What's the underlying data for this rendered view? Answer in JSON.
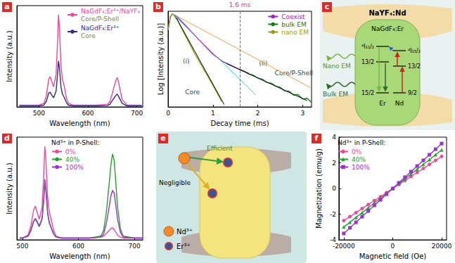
{
  "chart_data": [
    {
      "panel": "a",
      "type": "line",
      "x_label": "Wavelength (nm)",
      "y_label": "Intensity (a.u.)",
      "xlim": [
        455,
        712
      ],
      "xticks": [
        500,
        600,
        700
      ],
      "ylim": [
        0,
        1.1
      ],
      "tick_labels": "x",
      "grid": false,
      "legend": "upper right",
      "x": [
        460,
        480,
        500,
        510,
        515,
        520,
        523,
        526,
        530,
        535,
        538,
        540,
        542,
        545,
        548,
        552,
        556,
        560,
        570,
        580,
        600,
        620,
        640,
        645,
        650,
        655,
        658,
        660,
        663,
        666,
        670,
        680,
        700,
        710
      ],
      "series": [
        {
          "name": "NaGdF₄:Er³⁺/NaYF₄",
          "subtitle": "Core/P-Shell",
          "color": "#f0479a",
          "values": [
            0.02,
            0.02,
            0.02,
            0.04,
            0.12,
            0.3,
            0.33,
            0.28,
            0.22,
            0.35,
            0.7,
            1.0,
            0.85,
            0.45,
            0.3,
            0.22,
            0.1,
            0.04,
            0.02,
            0.02,
            0.02,
            0.02,
            0.03,
            0.06,
            0.15,
            0.25,
            0.3,
            0.32,
            0.26,
            0.18,
            0.08,
            0.02,
            0.02,
            0.02
          ]
        },
        {
          "name": "NaGdF₄:Er³⁺",
          "subtitle": "Core",
          "color": "#2b2b8a",
          "values": [
            0.01,
            0.01,
            0.01,
            0.02,
            0.06,
            0.15,
            0.16,
            0.13,
            0.1,
            0.17,
            0.35,
            0.5,
            0.42,
            0.22,
            0.14,
            0.1,
            0.05,
            0.02,
            0.01,
            0.01,
            0.01,
            0.01,
            0.015,
            0.03,
            0.07,
            0.11,
            0.13,
            0.14,
            0.11,
            0.08,
            0.04,
            0.01,
            0.01,
            0.01
          ]
        }
      ]
    },
    {
      "panel": "b",
      "type": "line",
      "x_label": "Decay time (ms)",
      "y_label": "Log [Intensity (a.u.)]",
      "xlim": [
        0,
        3.2
      ],
      "xticks": [
        0,
        1,
        2,
        3
      ],
      "ylim": [
        0.001,
        1.2
      ],
      "log": "y",
      "tick_labels": "x",
      "grid": false,
      "legend": "upper right",
      "series": [
        {
          "name": "Coexist",
          "color": "#a020c0",
          "x": [
            0,
            0.05,
            0.1,
            0.2,
            0.4,
            0.6,
            0.8,
            1.0,
            1.2,
            1.4,
            1.6,
            1.8
          ],
          "values": [
            0.3,
            0.8,
            1,
            0.8,
            0.4,
            0.2,
            0.1,
            0.05,
            0.03,
            0.022,
            0.016,
            0.012
          ]
        },
        {
          "name": "bulk EM",
          "color": "#1a7a1a",
          "x": [
            1.6,
            1.7,
            1.8,
            1.9,
            2.0,
            2.1,
            2.2,
            2.3,
            2.4,
            2.5,
            2.6,
            2.7,
            2.8,
            2.9,
            3.0,
            3.1,
            3.2
          ],
          "values": [
            0.016,
            0.014,
            0.0115,
            0.0105,
            0.0085,
            0.0078,
            0.0062,
            0.0058,
            0.0047,
            0.0043,
            0.0033,
            0.0032,
            0.0024,
            0.0025,
            0.0018,
            0.0019,
            0.0014
          ]
        },
        {
          "name": "nano EM",
          "color": "#9a9a10",
          "x": [
            0,
            0.05,
            0.1,
            0.2,
            0.4,
            0.6,
            0.8,
            1.0,
            1.2
          ],
          "values": [
            0.3,
            0.8,
            1,
            0.65,
            0.18,
            0.05,
            0.016,
            0.005,
            0.0015
          ]
        }
      ],
      "fits": [
        {
          "color": "#000000",
          "line_style": "solid",
          "x": [
            0.15,
            1.25
          ],
          "values": [
            0.9,
            0.0012
          ]
        },
        {
          "color": "#40c8e0",
          "line_style": "solid",
          "x": [
            0.1,
            1.95
          ],
          "values": [
            1.0,
            0.0025
          ]
        },
        {
          "color": "#f5a040",
          "line_style": "solid",
          "x": [
            0.1,
            3.2
          ],
          "values": [
            1.0,
            0.004
          ]
        },
        {
          "color": "#000000",
          "line_style": "solid",
          "x": [
            1.3,
            3.1
          ],
          "values": [
            0.025,
            0.0016
          ]
        }
      ],
      "vline": {
        "value": 1.6,
        "label": "1.6 ms",
        "color": "#e0407a"
      },
      "annotations": [
        {
          "text": "(i)",
          "x": 0.25,
          "y": 0.03
        },
        {
          "text": "(ii)",
          "x": 1.95,
          "y": 0.025
        },
        {
          "text": "Core",
          "x": 0.3,
          "y": 0.003
        },
        {
          "text": "Core/P-Shell",
          "x": 2.3,
          "y": 0.012
        }
      ]
    },
    {
      "panel": "d",
      "type": "line",
      "x_label": "Wavelength (nm)",
      "y_label": "Intensity (a.u.)",
      "xlim": [
        490,
        715
      ],
      "xticks": [
        500,
        600,
        700
      ],
      "ylim": [
        0,
        1.1
      ],
      "tick_labels": "x",
      "grid": false,
      "legend": "upper center",
      "legend_title": "Nd³⁺ in P-Shell:",
      "x": [
        495,
        500,
        510,
        515,
        520,
        523,
        526,
        530,
        535,
        538,
        540,
        542,
        545,
        548,
        552,
        556,
        560,
        570,
        580,
        600,
        620,
        640,
        645,
        650,
        655,
        658,
        661,
        664,
        667,
        670,
        675,
        680,
        700,
        715
      ],
      "series": [
        {
          "name": "0%",
          "color": "#f0479a",
          "values": [
            0.02,
            0.02,
            0.05,
            0.15,
            0.32,
            0.36,
            0.3,
            0.22,
            0.35,
            0.7,
            1.0,
            0.85,
            0.45,
            0.3,
            0.2,
            0.1,
            0.04,
            0.02,
            0.02,
            0.02,
            0.02,
            0.03,
            0.04,
            0.07,
            0.1,
            0.12,
            0.13,
            0.11,
            0.08,
            0.05,
            0.03,
            0.02,
            0.02,
            0.02
          ]
        },
        {
          "name": "40%",
          "color": "#22a32a",
          "values": [
            0.02,
            0.02,
            0.04,
            0.1,
            0.2,
            0.22,
            0.19,
            0.14,
            0.22,
            0.42,
            0.62,
            0.52,
            0.28,
            0.18,
            0.12,
            0.06,
            0.03,
            0.02,
            0.02,
            0.02,
            0.02,
            0.04,
            0.1,
            0.3,
            0.6,
            0.8,
            0.92,
            0.85,
            0.6,
            0.35,
            0.12,
            0.04,
            0.02,
            0.02
          ]
        },
        {
          "name": "100%",
          "color": "#9b30d0",
          "values": [
            0.02,
            0.02,
            0.04,
            0.1,
            0.2,
            0.23,
            0.2,
            0.15,
            0.23,
            0.44,
            0.65,
            0.54,
            0.29,
            0.19,
            0.12,
            0.06,
            0.03,
            0.02,
            0.02,
            0.02,
            0.02,
            0.03,
            0.06,
            0.18,
            0.35,
            0.47,
            0.53,
            0.5,
            0.36,
            0.22,
            0.08,
            0.03,
            0.02,
            0.02
          ]
        }
      ]
    },
    {
      "panel": "f",
      "type": "line",
      "x_label": "Magnetic field (Oe)",
      "y_label": "Magnetization (emu/g)",
      "xlim": [
        -22000,
        22000
      ],
      "xticks": [
        -20000,
        0,
        20000
      ],
      "ylim": [
        -4,
        4
      ],
      "yticks": [
        -4,
        -2,
        0,
        2,
        4
      ],
      "grid": false,
      "legend": "upper left",
      "legend_title": "Nd³⁺ in P-Shell:",
      "x": [
        -20000,
        -17500,
        -15000,
        -12500,
        -10000,
        -7500,
        -5000,
        -2500,
        0,
        2500,
        5000,
        7500,
        10000,
        12500,
        15000,
        17500,
        20000
      ],
      "series": [
        {
          "name": "0%",
          "color": "#f0479a",
          "marker": "circle",
          "values": [
            -2.5,
            -2.19,
            -1.88,
            -1.56,
            -1.25,
            -0.94,
            -0.63,
            -0.31,
            0,
            0.31,
            0.63,
            0.94,
            1.25,
            1.56,
            1.88,
            2.19,
            2.5
          ]
        },
        {
          "name": "40%",
          "color": "#22a32a",
          "marker": "triangle",
          "values": [
            -3.0,
            -2.63,
            -2.25,
            -1.88,
            -1.5,
            -1.13,
            -0.75,
            -0.38,
            0,
            0.38,
            0.75,
            1.13,
            1.5,
            1.88,
            2.25,
            2.63,
            3.0
          ]
        },
        {
          "name": "100%",
          "color": "#9b30d0",
          "marker": "square",
          "values": [
            -3.5,
            -3.06,
            -2.63,
            -2.19,
            -1.75,
            -1.31,
            -0.88,
            -0.44,
            0,
            0.44,
            0.88,
            1.31,
            1.75,
            2.19,
            2.63,
            3.06,
            3.5
          ]
        }
      ]
    }
  ],
  "diagrams": [
    {
      "panel": "c",
      "shell_label": "NaYF₄:Nd",
      "core_label": "NaGdF₄:Er",
      "emissions": [
        "Nano EM",
        "Bulk EM"
      ],
      "er_levels": [
        "⁴I₁₁/₂",
        "13/2",
        "15/2"
      ],
      "er_label": "Er",
      "nd_levels": [
        "⁴I₁₅/₂",
        "13/2",
        "9/2"
      ],
      "nd_label": "Nd"
    },
    {
      "panel": "e",
      "transfers": [
        "Efficient",
        "Negligible"
      ],
      "legend": [
        {
          "name": "Nd³⁺",
          "color": "#f28c28"
        },
        {
          "name": "Er³⁺",
          "color": "#2c5aa0"
        }
      ]
    }
  ]
}
